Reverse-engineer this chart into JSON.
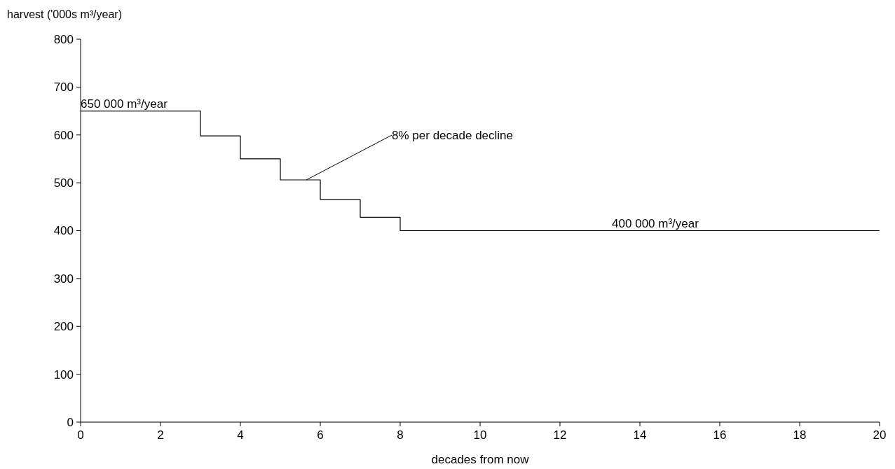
{
  "chart_data": {
    "type": "step",
    "ylabel": "harvest ('000s m³/year)",
    "xlabel": "decades from now",
    "x": [
      0,
      3,
      4,
      5,
      6,
      7,
      8,
      20
    ],
    "values": [
      650,
      598,
      550,
      506,
      465,
      428,
      400,
      400
    ],
    "color": "#000000",
    "xlim": [
      0,
      20
    ],
    "xticks": [
      0,
      2,
      4,
      6,
      8,
      10,
      12,
      14,
      16,
      18,
      20
    ],
    "ylim": [
      0,
      800
    ],
    "yticks": [
      0,
      100,
      200,
      300,
      400,
      500,
      600,
      700,
      800
    ],
    "grid": false,
    "marker": "none",
    "line_style": "solid",
    "annotations": [
      {
        "text": "650 000 m³/year",
        "x": 0,
        "y": 650
      },
      {
        "text": "8% per decade decline",
        "x": 5.65,
        "y": 506
      },
      {
        "text": "400 000 m³/year",
        "x": 13.3,
        "y": 400
      }
    ]
  }
}
